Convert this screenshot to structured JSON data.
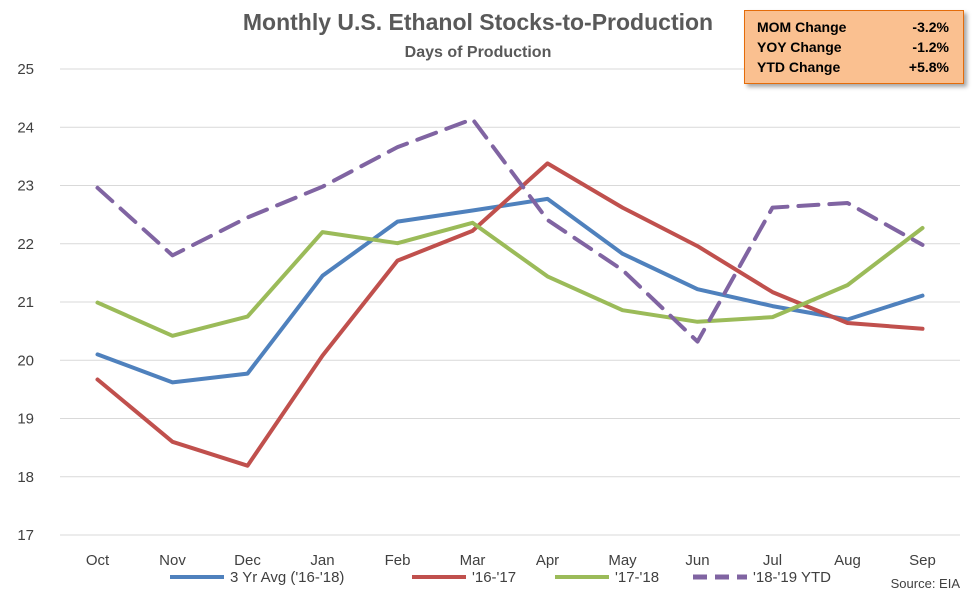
{
  "chart_data": {
    "type": "line",
    "title": "Monthly U.S. Ethanol Stocks-to-Production",
    "subtitle": "Days of Production",
    "xlabel": "",
    "ylabel": "",
    "categories": [
      "Oct",
      "Nov",
      "Dec",
      "Jan",
      "Feb",
      "Mar",
      "Apr",
      "May",
      "Jun",
      "Jul",
      "Aug",
      "Sep"
    ],
    "ylim": [
      17,
      25
    ],
    "yticks": [
      17,
      18,
      19,
      20,
      21,
      22,
      23,
      24,
      25
    ],
    "grid": true,
    "legend_position": "bottom",
    "series": [
      {
        "name": "3 Yr Avg ('16-'18)",
        "color": "#4f81bd",
        "dash": false,
        "values": [
          20.1,
          19.62,
          19.77,
          21.45,
          22.38,
          22.57,
          22.77,
          21.83,
          21.22,
          20.93,
          20.7,
          21.11
        ]
      },
      {
        "name": "'16-'17",
        "color": "#c0504d",
        "dash": false,
        "values": [
          19.67,
          18.6,
          18.19,
          20.08,
          21.71,
          22.22,
          23.38,
          22.62,
          21.96,
          21.17,
          20.64,
          20.54
        ]
      },
      {
        "name": "'17-'18",
        "color": "#9bbb59",
        "dash": false,
        "values": [
          20.99,
          20.42,
          20.75,
          22.2,
          22.01,
          22.36,
          21.44,
          20.86,
          20.66,
          20.74,
          21.29,
          22.27
        ]
      },
      {
        "name": "'18-'19 YTD",
        "color": "#8064a2",
        "dash": true,
        "values": [
          22.96,
          21.8,
          22.45,
          22.98,
          23.66,
          24.14,
          22.41,
          21.55,
          20.32,
          22.62,
          22.7,
          21.98
        ]
      }
    ],
    "source": "Source: EIA"
  },
  "change_box": {
    "rows": [
      {
        "label": "MOM Change",
        "value": "-3.2%"
      },
      {
        "label": "YOY Change",
        "value": "-1.2%"
      },
      {
        "label": "YTD Change",
        "value": "+5.8%"
      }
    ]
  }
}
